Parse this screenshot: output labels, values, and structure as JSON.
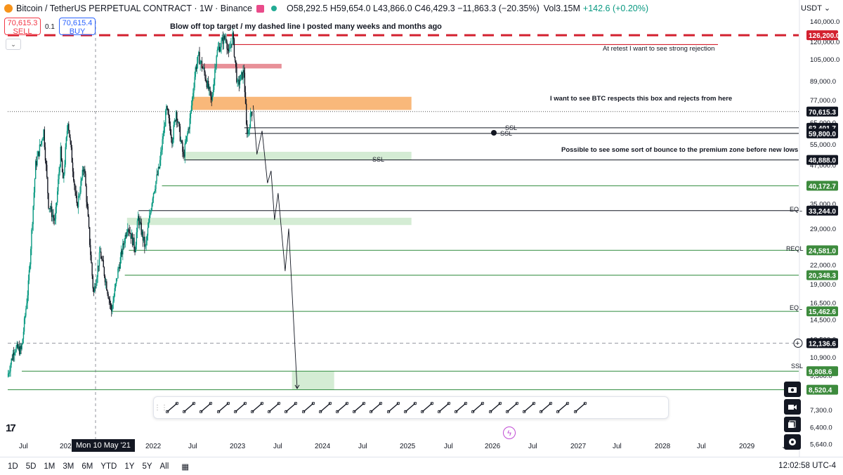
{
  "header": {
    "title": "Bitcoin / TetherUS PERPETUAL CONTRACT · 1W · Binance",
    "ohlc": "O58,292.5 H59,654.0 L43,866.0 C46,429.3 −11,863.3 (−20.35%)",
    "volume": "Vol3.15M",
    "volume_change": "+142.6 (+0.20%)",
    "currency": "USDT"
  },
  "trade": {
    "sell_price": "70,615.3",
    "sell_label": "SELL",
    "spread": "0.1",
    "buy_price": "70,615.4",
    "buy_label": "BUY"
  },
  "colors": {
    "up": "#089981",
    "down": "#131722",
    "red_line": "#d3202f",
    "orange_box": "#f9b87a",
    "pink_box": "#e89098",
    "green_zone": "#d4ecd4",
    "green_level": "#2e8b3d",
    "axis_tag_green": "#3d8b3d",
    "axis_tag_red": "#d3202f"
  },
  "annotations": {
    "top_text": "Blow off top target / my dashed line I posted many weeks and months ago",
    "retest_text": "At retest I want to see strong rejection",
    "box_text": "I want to see BTC respects this box and rejects from here",
    "bounce_text": "Possible to see some sort of bounce to the premium zone before new lows",
    "ssl": "SSL",
    "eql": "EQL",
    "reql": "REQL"
  },
  "toolbar": [
    "cursor-tools-icon",
    "trend-line-icon",
    "horizontal-line-icon",
    "fib-channel-icon",
    "ray-icon",
    "callout-icon",
    "rectangle-icon",
    "price-range-icon",
    "long-position-icon",
    "crosshair-icon",
    "vertical-anchored-icon",
    "curve-icon",
    "arrow-icon",
    "brush-icon",
    "text-icon",
    "comment-icon",
    "path-icon",
    "arrow-marker-icon",
    "flag-icon",
    "date-range-icon",
    "forecast-icon",
    "bars-pattern-icon",
    "projection-icon",
    "highlighter-icon",
    "vertical-line-icon"
  ],
  "bottom_bar": {
    "ranges": [
      "1D",
      "5D",
      "1M",
      "3M",
      "6M",
      "YTD",
      "1Y",
      "5Y",
      "All"
    ],
    "clock": "12:02:58 UTC-4"
  },
  "crosshair_date": "Mon 10 May '21",
  "chart_data": {
    "type": "candlestick",
    "y_scale": "log",
    "ylim": [
      5400,
      142000
    ],
    "y_ticks": [
      140000,
      120000,
      105000,
      89000,
      77000,
      65000,
      55000,
      47000,
      41000,
      35000,
      29000,
      22000,
      19000,
      16500,
      14500,
      12500,
      10900,
      9500,
      7300,
      6400,
      5640
    ],
    "x_labels": [
      "Jul",
      "2021",
      "Mon 10 May '21",
      "2022",
      "Jul",
      "2023",
      "Jul",
      "2024",
      "Jul",
      "2025",
      "Jul",
      "2026",
      "Jul",
      "2027",
      "Jul",
      "2028",
      "Jul",
      "2029",
      "Jul"
    ],
    "price_path": [
      [
        "2020-06-01",
        9400
      ],
      [
        "2020-08-01",
        11700
      ],
      [
        "2020-10-01",
        11500
      ],
      [
        "2020-12-01",
        19000
      ],
      [
        "2021-02-01",
        47000
      ],
      [
        "2021-04-12",
        61000
      ],
      [
        "2021-05-24",
        35000
      ],
      [
        "2021-07-19",
        30500
      ],
      [
        "2021-09-06",
        52000
      ],
      [
        "2021-09-27",
        41000
      ],
      [
        "2021-11-08",
        66500
      ],
      [
        "2022-01-24",
        34000
      ],
      [
        "2022-03-28",
        47000
      ],
      [
        "2022-06-18",
        17600
      ],
      [
        "2022-08-15",
        24200
      ],
      [
        "2022-11-21",
        15500
      ],
      [
        "2023-01-16",
        21000
      ],
      [
        "2023-04-10",
        30000
      ],
      [
        "2023-06-12",
        25000
      ],
      [
        "2023-07-10",
        31500
      ],
      [
        "2023-09-11",
        25000
      ],
      [
        "2023-11-13",
        37500
      ],
      [
        "2024-01-08",
        46000
      ],
      [
        "2024-03-11",
        72000
      ],
      [
        "2024-05-01",
        57000
      ],
      [
        "2024-06-03",
        71000
      ],
      [
        "2024-08-05",
        50000
      ],
      [
        "2024-09-30",
        66000
      ],
      [
        "2024-11-18",
        98000
      ],
      [
        "2024-12-16",
        107000
      ],
      [
        "2025-02-03",
        95000
      ],
      [
        "2025-04-07",
        76000
      ],
      [
        "2025-05-19",
        110000
      ],
      [
        "2025-07-14",
        122000
      ],
      [
        "2025-08-11",
        124000
      ],
      [
        "2025-09-01",
        108000
      ],
      [
        "2025-10-06",
        126000
      ],
      [
        "2025-11-17",
        86000
      ],
      [
        "2026-01-12",
        96000
      ],
      [
        "2026-02-02",
        63000
      ],
      [
        "2026-02-16",
        59500
      ],
      [
        "2026-03-16",
        70600
      ]
    ],
    "projection_path": [
      [
        "2026-03-30",
        74000
      ],
      [
        "2026-05-01",
        51000
      ],
      [
        "2026-06-15",
        61000
      ],
      [
        "2026-08-01",
        41000
      ],
      [
        "2026-09-01",
        45000
      ],
      [
        "2026-10-01",
        31000
      ],
      [
        "2026-11-01",
        38000
      ],
      [
        "2027-01-01",
        21000
      ],
      [
        "2027-02-01",
        29000
      ],
      [
        "2027-04-15",
        8600
      ]
    ],
    "levels": [
      {
        "price": 126200.0,
        "label": "126,200.0",
        "color": "red",
        "style": "dashed"
      },
      {
        "price": 70615.3,
        "label": "70,615.3",
        "color": "dark",
        "style": "dotted"
      },
      {
        "price": 62401.7,
        "label": "62,401.7",
        "color": "dark"
      },
      {
        "price": 59800.0,
        "label": "59,800.0",
        "color": "dark"
      },
      {
        "price": 48888.0,
        "label": "48,888.0",
        "color": "dark"
      },
      {
        "price": 40172.7,
        "label": "40,172.7",
        "color": "green"
      },
      {
        "price": 33244.0,
        "label": "33,244.0",
        "color": "dark"
      },
      {
        "price": 24581.0,
        "label": "24,581.0",
        "color": "green"
      },
      {
        "price": 20348.3,
        "label": "20,348.3",
        "color": "green"
      },
      {
        "price": 15462.6,
        "label": "15,462.6",
        "color": "green"
      },
      {
        "price": 12136.6,
        "label": "12,136.6",
        "color": "dark"
      },
      {
        "price": 9808.6,
        "label": "9,808.6",
        "color": "green"
      },
      {
        "price": 8520.4,
        "label": "8,520.4",
        "color": "green"
      }
    ],
    "zones": [
      {
        "name": "orange-box",
        "from": "2024-10-14",
        "to": "2029-12-31",
        "top": 79000,
        "bottom": 71500
      },
      {
        "name": "pink-box",
        "from": "2025-01-01",
        "to": "2026-12-01",
        "top": 101500,
        "bottom": 98000
      },
      {
        "name": "bounce-zone",
        "from": "2024-08-05",
        "to": "2029-12-31",
        "top": 52000,
        "bottom": 48888
      },
      {
        "name": "eql-zone",
        "from": "2023-04-01",
        "to": "2029-12-31",
        "top": 31500,
        "bottom": 29800
      },
      {
        "name": "target-zone",
        "from": "2027-03-01",
        "to": "2028-03-01",
        "top": 9808,
        "bottom": 8520
      }
    ]
  }
}
